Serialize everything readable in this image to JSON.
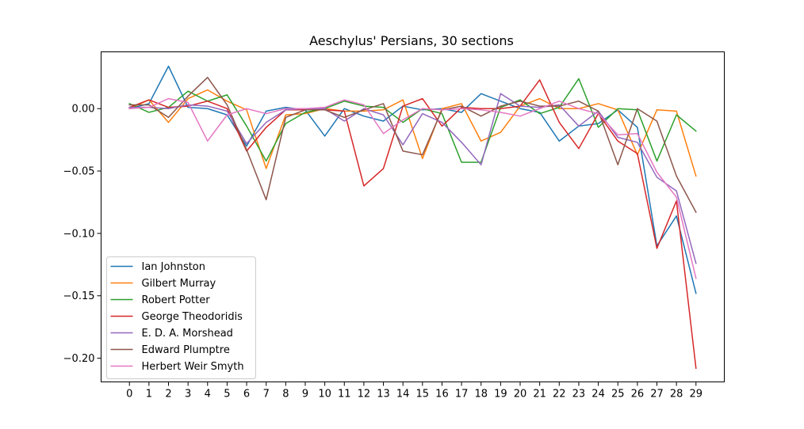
{
  "chart_data": {
    "type": "line",
    "title": "Aeschylus' Persians, 30 sections",
    "xlabel": "",
    "ylabel": "",
    "x": [
      0,
      1,
      2,
      3,
      4,
      5,
      6,
      7,
      8,
      9,
      10,
      11,
      12,
      13,
      14,
      15,
      16,
      17,
      18,
      19,
      20,
      21,
      22,
      23,
      24,
      25,
      26,
      27,
      28,
      29
    ],
    "xlim": [
      -1.45,
      30.45
    ],
    "ylim": [
      -0.219,
      0.0455
    ],
    "yticks": [
      0.0,
      -0.05,
      -0.1,
      -0.15,
      -0.2
    ],
    "ytick_labels": [
      "0.00",
      "−0.05",
      "−0.10",
      "−0.15",
      "−0.20"
    ],
    "xtick_labels": [
      "0",
      "1",
      "2",
      "3",
      "4",
      "5",
      "6",
      "7",
      "8",
      "9",
      "10",
      "11",
      "12",
      "13",
      "14",
      "15",
      "16",
      "17",
      "18",
      "19",
      "20",
      "21",
      "22",
      "23",
      "24",
      "25",
      "26",
      "27",
      "28",
      "29"
    ],
    "grid": false,
    "legend_position": "lower-left",
    "series": [
      {
        "name": "Ian Johnston",
        "color": "#1f77b4",
        "values": [
          0.0,
          0.004,
          0.034,
          0.001,
          0.0,
          -0.005,
          -0.03,
          -0.002,
          0.001,
          -0.001,
          -0.022,
          0.0,
          -0.006,
          -0.01,
          0.002,
          -0.001,
          0.0,
          -0.003,
          0.012,
          0.006,
          0.0,
          -0.003,
          -0.026,
          -0.014,
          -0.012,
          -0.001,
          -0.015,
          -0.11,
          -0.086,
          -0.148
        ]
      },
      {
        "name": "Gilbert Murray",
        "color": "#ff7f0e",
        "values": [
          0.0,
          0.007,
          -0.011,
          0.008,
          0.015,
          0.006,
          -0.001,
          -0.048,
          -0.005,
          -0.004,
          0.0,
          -0.002,
          -0.002,
          -0.001,
          0.007,
          -0.04,
          0.0,
          0.004,
          -0.026,
          -0.019,
          0.002,
          0.008,
          0.0,
          0.0,
          0.004,
          -0.001,
          -0.037,
          -0.001,
          -0.002,
          -0.054
        ]
      },
      {
        "name": "Robert Potter",
        "color": "#2ca02c",
        "values": [
          0.004,
          -0.003,
          0.001,
          0.014,
          0.006,
          0.011,
          -0.014,
          -0.042,
          -0.012,
          -0.003,
          0.0,
          0.006,
          0.002,
          0.001,
          -0.011,
          0.0,
          -0.004,
          -0.043,
          -0.043,
          0.001,
          0.007,
          -0.004,
          0.001,
          0.024,
          -0.015,
          0.0,
          -0.001,
          -0.042,
          -0.005,
          -0.018
        ]
      },
      {
        "name": "George Theodoridis",
        "color": "#d62728",
        "values": [
          0.001,
          0.007,
          0.001,
          0.002,
          0.006,
          0.0,
          -0.034,
          -0.015,
          -0.001,
          -0.001,
          -0.001,
          -0.002,
          -0.062,
          -0.048,
          0.002,
          0.008,
          -0.014,
          0.001,
          0.0,
          0.0,
          0.002,
          0.023,
          -0.011,
          -0.032,
          -0.004,
          -0.026,
          -0.036,
          -0.112,
          -0.074,
          -0.208
        ]
      },
      {
        "name": "E. D. A. Morshead",
        "color": "#9467bd",
        "values": [
          0.001,
          0.001,
          0.0,
          0.003,
          0.002,
          -0.002,
          -0.028,
          -0.011,
          -0.001,
          0.0,
          0.0,
          -0.01,
          0.0,
          -0.005,
          -0.029,
          -0.004,
          -0.011,
          -0.027,
          -0.045,
          0.012,
          0.002,
          0.001,
          0.003,
          -0.014,
          -0.002,
          -0.023,
          -0.027,
          -0.055,
          -0.066,
          -0.124
        ]
      },
      {
        "name": "Edward Plumptre",
        "color": "#8c564b",
        "values": [
          0.003,
          0.003,
          -0.007,
          0.01,
          0.025,
          0.003,
          -0.033,
          -0.073,
          -0.007,
          -0.001,
          -0.001,
          -0.007,
          -0.001,
          0.004,
          -0.034,
          -0.037,
          -0.001,
          0.002,
          -0.006,
          0.002,
          0.006,
          0.002,
          0.002,
          0.006,
          -0.002,
          -0.045,
          0.0,
          -0.01,
          -0.054,
          -0.083
        ]
      },
      {
        "name": "Herbert Weir Smyth",
        "color": "#e377c2",
        "values": [
          0.0,
          0.001,
          0.008,
          0.005,
          -0.026,
          -0.005,
          0.0,
          -0.004,
          0.0,
          0.0,
          0.001,
          0.007,
          0.003,
          -0.02,
          -0.009,
          0.0,
          -0.001,
          0.0,
          -0.001,
          -0.003,
          -0.006,
          0.0,
          0.006,
          0.0,
          -0.004,
          -0.021,
          -0.02,
          -0.051,
          -0.071,
          -0.136
        ]
      }
    ]
  }
}
